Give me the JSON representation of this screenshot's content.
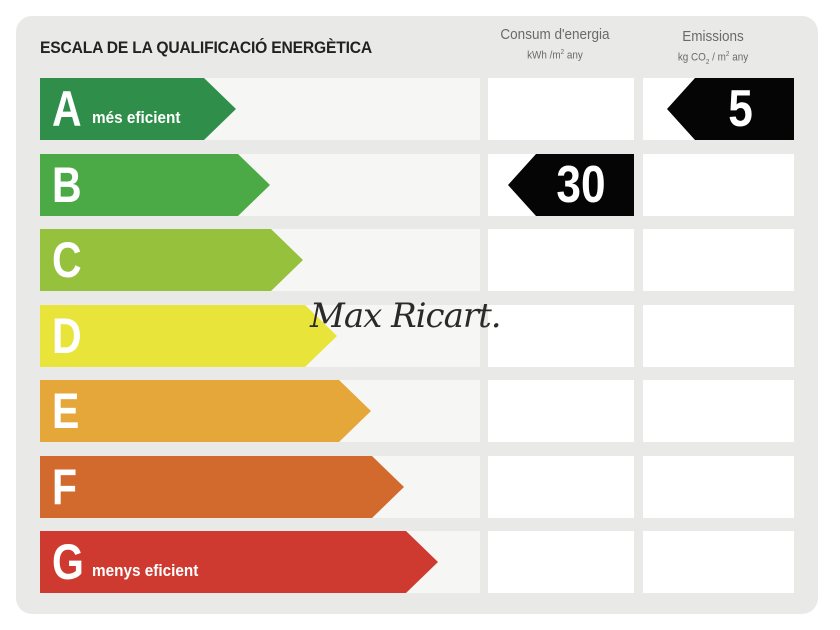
{
  "title": "ESCALA DE LA QUALIFICACIÓ ENERGÈTICA",
  "columns": {
    "energy": {
      "title": "Consum d'energia",
      "unit_prefix": "kWh /m",
      "unit_sup": "2",
      "unit_suffix": " any"
    },
    "emissions": {
      "title": "Emissions",
      "unit_prefix": "kg CO",
      "unit_sub": "2",
      "unit_mid": " / m",
      "unit_sup": "2",
      "unit_suffix": " any"
    }
  },
  "ratings": [
    {
      "letter": "A",
      "label": "més eficient",
      "color": "#2f8f4a"
    },
    {
      "letter": "B",
      "label": "",
      "color": "#4caa46"
    },
    {
      "letter": "C",
      "label": "",
      "color": "#95c13d"
    },
    {
      "letter": "D",
      "label": "",
      "color": "#e9e43a"
    },
    {
      "letter": "E",
      "label": "",
      "color": "#e6a73a"
    },
    {
      "letter": "F",
      "label": "",
      "color": "#d26a2e"
    },
    {
      "letter": "G",
      "label": "menys eficient",
      "color": "#cf3a30"
    }
  ],
  "energy_rating": {
    "letter": "B",
    "value": "30"
  },
  "emissions_rating": {
    "letter": "A",
    "value": "5"
  },
  "watermark": "Max Ricart."
}
